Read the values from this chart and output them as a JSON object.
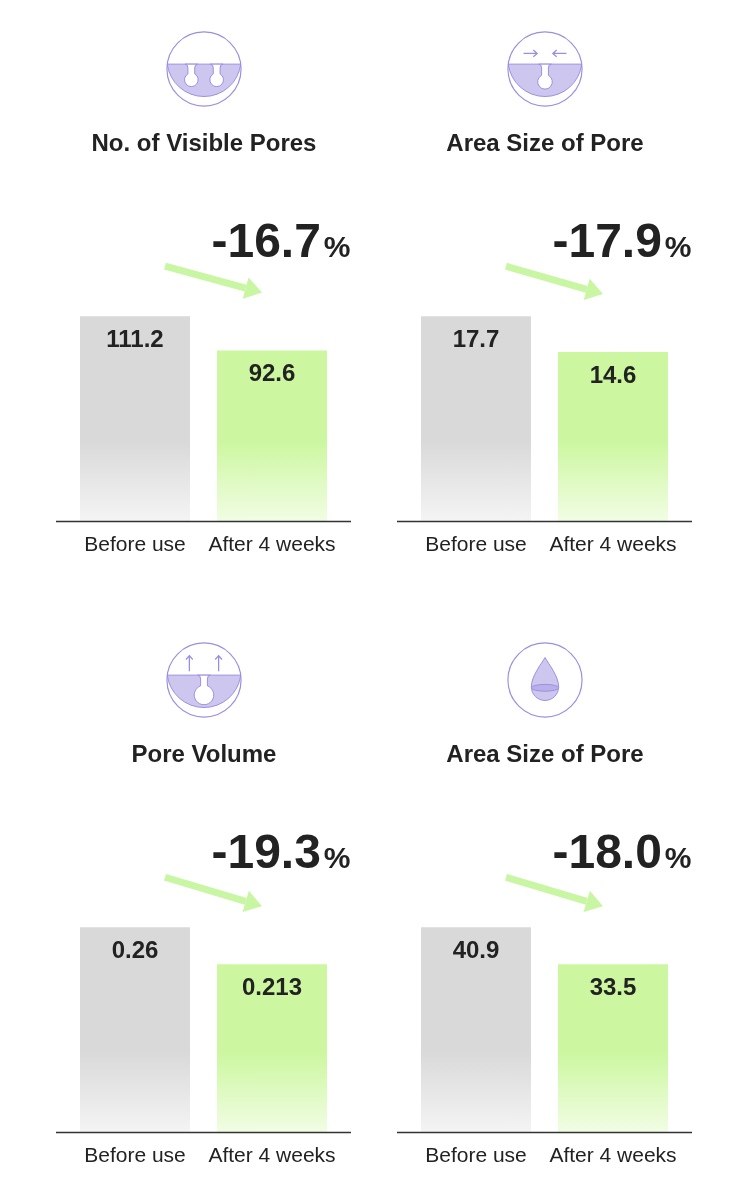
{
  "chart_data": [
    {
      "type": "bar",
      "title": "No. of Visible Pores",
      "categories": [
        "Before use",
        "After 4 weeks"
      ],
      "values": [
        111.2,
        92.6
      ],
      "colors": [
        "#d9d9d9",
        "#ccf7a0"
      ],
      "data_labels": true,
      "annotations": [
        "-16.7%"
      ]
    },
    {
      "type": "bar",
      "title": "Area Size of Pore",
      "categories": [
        "Before use",
        "After 4 weeks"
      ],
      "values": [
        17.7,
        14.6
      ],
      "colors": [
        "#d9d9d9",
        "#ccf7a0"
      ],
      "data_labels": true,
      "annotations": [
        "-17.9%"
      ]
    },
    {
      "type": "bar",
      "title": "Pore Volume",
      "categories": [
        "Before use",
        "After 4 weeks"
      ],
      "values": [
        0.26,
        0.213
      ],
      "colors": [
        "#d9d9d9",
        "#ccf7a0"
      ],
      "data_labels": true,
      "annotations": [
        "-19.3%"
      ]
    },
    {
      "type": "bar",
      "title": "Area Size of Pore",
      "categories": [
        "Before use",
        "After 4 weeks"
      ],
      "values": [
        40.9,
        33.5
      ],
      "colors": [
        "#d9d9d9",
        "#ccf7a0"
      ],
      "data_labels": true,
      "annotations": [
        "-18.0%"
      ]
    }
  ]
}
